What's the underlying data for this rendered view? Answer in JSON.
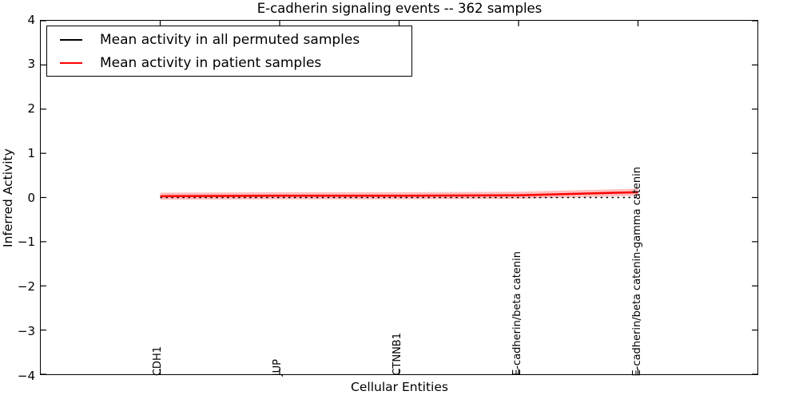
{
  "chart_data": {
    "type": "line",
    "title": "E-cadherin signaling events -- 362 samples",
    "xlabel": "Cellular Entities",
    "ylabel": "Inferred Activity",
    "ylim": [
      -4,
      4
    ],
    "grid": false,
    "legend_position": "upper left",
    "frame_color": "#000000",
    "yticks": [
      {
        "value": 4,
        "label": "4"
      },
      {
        "value": 3,
        "label": "3"
      },
      {
        "value": 2,
        "label": "2"
      },
      {
        "value": 1,
        "label": "1"
      },
      {
        "value": 0,
        "label": "0"
      },
      {
        "value": -1,
        "label": "−1"
      },
      {
        "value": -2,
        "label": "−2"
      },
      {
        "value": -3,
        "label": "−3"
      },
      {
        "value": -4,
        "label": "−4"
      }
    ],
    "categories": [
      "CDH1",
      "JUP",
      "CTNNB1",
      "E-cadherin/beta catenin",
      "E-cadherin/beta catenin-gamma catenin"
    ],
    "series": [
      {
        "name": "Mean activity in all permuted samples",
        "color": "#000000",
        "line_style": "dotted",
        "line_width": 1.4,
        "values": [
          0,
          0,
          0,
          0,
          0
        ]
      },
      {
        "name": "Mean activity in patient samples",
        "color": "#ff0000",
        "line_style": "solid",
        "line_width": 2.5,
        "values": [
          0.03,
          0.04,
          0.04,
          0.05,
          0.12
        ],
        "band_halfwidth": 0.08,
        "band_color": "rgba(255,0,0,0.25)"
      }
    ]
  },
  "legend": {
    "items": [
      {
        "label": "Mean activity in all permuted samples",
        "color": "#000000"
      },
      {
        "label": "Mean activity in patient samples",
        "color": "#ff0000"
      }
    ]
  }
}
